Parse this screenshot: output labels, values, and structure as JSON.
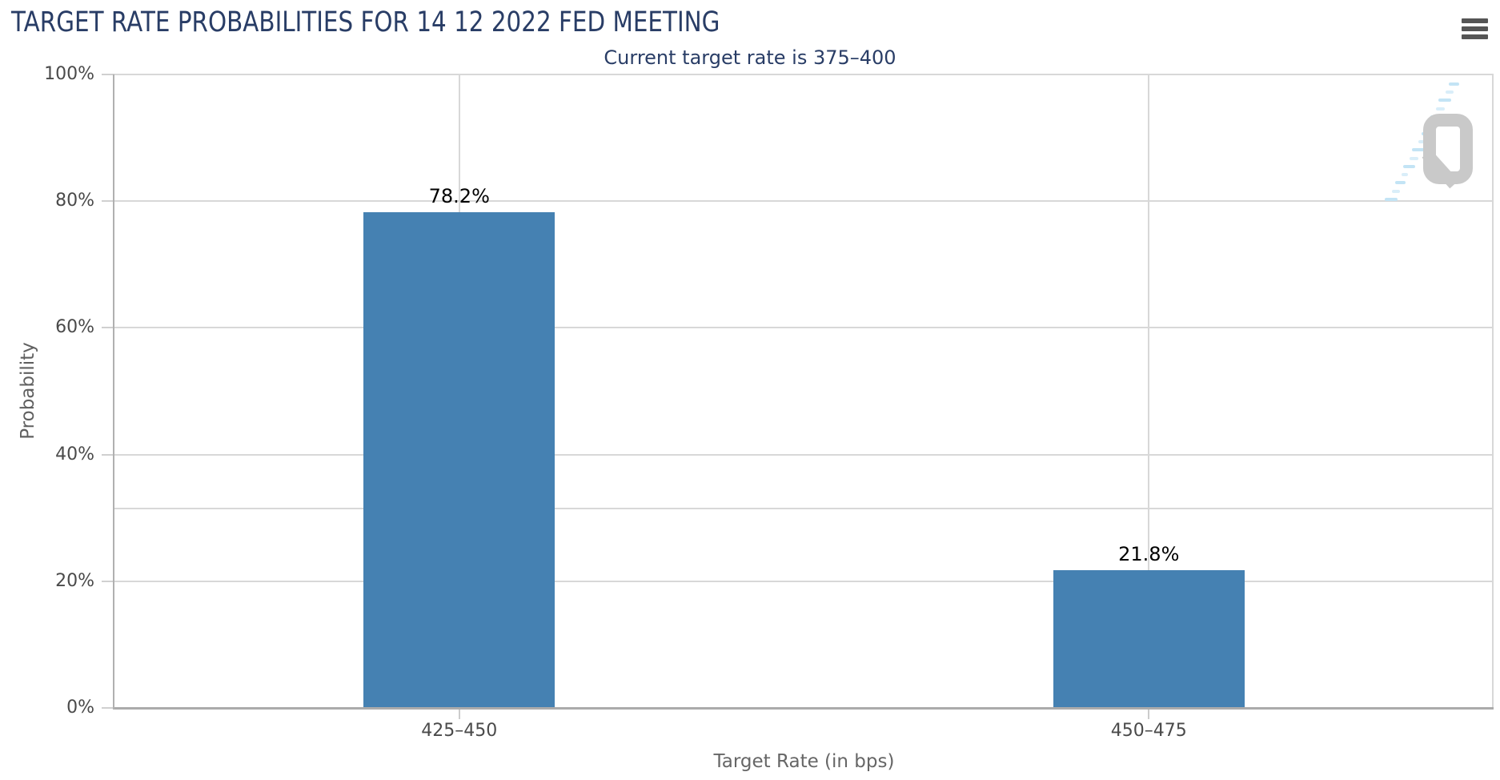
{
  "chart": {
    "title": "TARGET RATE PROBABILITIES FOR 14 12 2022 FED MEETING",
    "subtitle": "Current target rate is 375–400",
    "menu_icon": "hamburger-export-menu",
    "watermark_icon": "q-logo"
  },
  "chart_data": {
    "type": "bar",
    "title": "TARGET RATE PROBABILITIES FOR 14 12 2022 FED MEETING",
    "subtitle": "Current target rate is 375–400",
    "categories": [
      "425–450",
      "450–475"
    ],
    "values": [
      78.2,
      21.8
    ],
    "value_labels": [
      "78.2%",
      "21.8%"
    ],
    "xlabel": "Target Rate (in bps)",
    "ylabel": "Probability",
    "ylim": [
      0,
      100
    ],
    "ytick_values": [
      0,
      20,
      40,
      60,
      80,
      100
    ],
    "ytick_labels": [
      "0%",
      "20%",
      "40%",
      "60%",
      "80%",
      "100%"
    ],
    "grid": true,
    "extra_unlabeled_gridline_value": 31.5,
    "legend_position": "none",
    "bar_color": "#4581b2"
  },
  "colors": {
    "title_navy": "#293d66",
    "bar_blue": "#4581b2",
    "gridline": "#d8d8d8",
    "axis_line": "#ababab",
    "tick_label": "#4a4a4a",
    "axis_title": "#666666",
    "data_label": "#000000",
    "menu_icon": "#555555",
    "watermark_gray": "#c9c9c9",
    "watermark_blue": "#c3e4f5"
  }
}
